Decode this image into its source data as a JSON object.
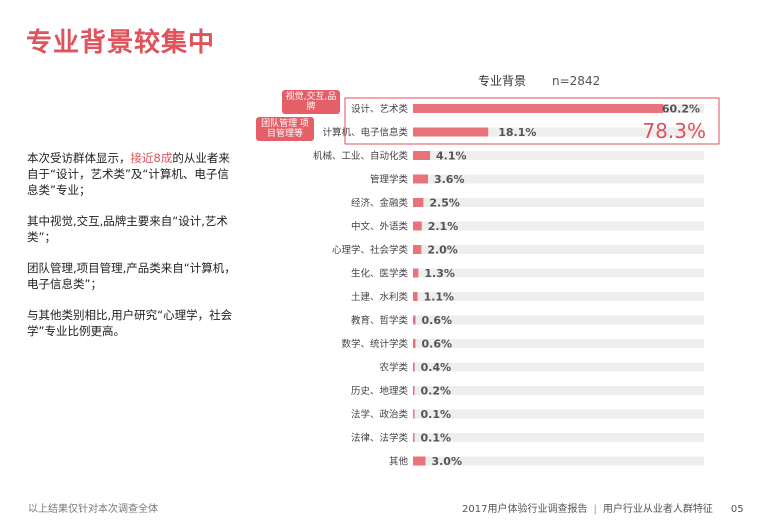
{
  "title": "专业背景较集中",
  "description": {
    "p1_pre": "本次受访群体显示，",
    "p1_highlight": "接近8成",
    "p1_post": "的从业者来自于“设计，艺术类”及“计算机、电子信息类”专业；",
    "p2": "其中视觉,交互,品牌主要来自“设计,艺术类”；",
    "p3": "团队管理,项目管理,产品类来自“计算机，电子信息类”；",
    "p4": "与其他类别相比,用户研究“心理学，社会学”专业比例更高。"
  },
  "callouts": {
    "design": "视觉,交互,品牌",
    "computer": "团队管理 项目管理等"
  },
  "footer": {
    "note": "以上结果仅针对本次调查全体",
    "report": "2017用户体验行业调查报告",
    "section": "用户行业从业者人群特征",
    "page": "05"
  },
  "colors": {
    "accent": "#e0525c",
    "bar": "#e8737a",
    "track": "#eeeeee"
  },
  "chart_data": {
    "type": "bar",
    "orientation": "horizontal",
    "title": "专业背景",
    "n_label": "n=2842",
    "categories": [
      "设计、艺术类",
      "计算机、电子信息类",
      "机械、工业、自动化类",
      "管理学类",
      "经济、金融类",
      "中文、外语类",
      "心理学、社会学类",
      "生化、医学类",
      "土建、水利类",
      "教育、哲学类",
      "数学、统计学类",
      "农学类",
      "历史、地理类",
      "法学、政治类",
      "法律、法学类",
      "其他"
    ],
    "values": [
      60.2,
      18.1,
      4.1,
      3.6,
      2.5,
      2.1,
      2.0,
      1.3,
      1.1,
      0.6,
      0.6,
      0.4,
      0.2,
      0.1,
      0.1,
      3.0
    ],
    "value_labels": [
      "60.2%",
      "18.1%",
      "4.1%",
      "3.6%",
      "2.5%",
      "2.1%",
      "2.0%",
      "1.3%",
      "1.1%",
      "0.6%",
      "0.6%",
      "0.4%",
      "0.2%",
      "0.1%",
      "0.1%",
      "3.0%"
    ],
    "xlim": [
      0,
      70
    ],
    "highlight_total": "78.3%"
  }
}
